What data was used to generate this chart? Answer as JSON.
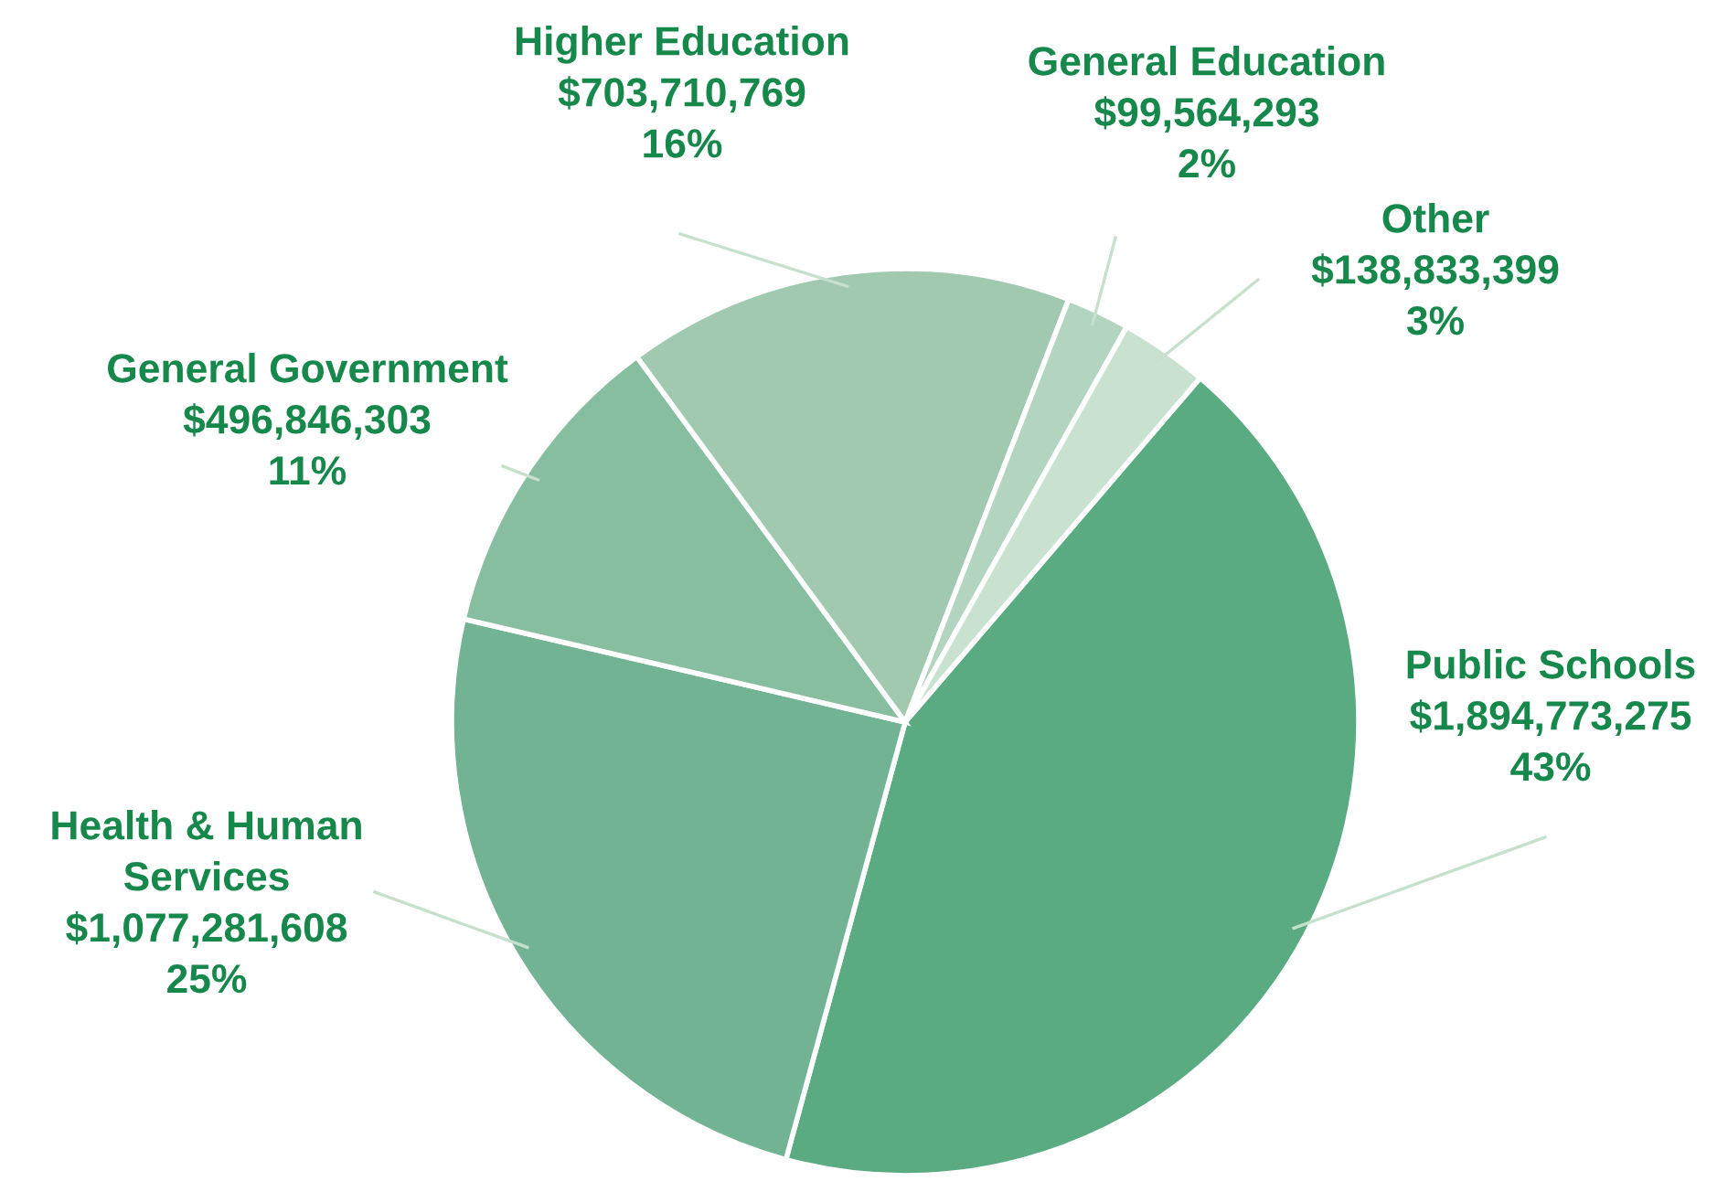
{
  "chart_data": {
    "type": "pie",
    "categories": [
      "Public Schools",
      "Health & Human Services",
      "General Government",
      "Higher Education",
      "General Education",
      "Other"
    ],
    "values": [
      1894773275,
      1077281608,
      496846303,
      703710769,
      99564293,
      138833399
    ],
    "value_labels": [
      "$1,894,773,275\n43%",
      "$1,077,281,608\n25%",
      "$496,846,303\n11%",
      "$703,710,769\n16%",
      "$99,564,293\n2%",
      "$138,833,399\n3%"
    ],
    "colors": [
      "#5aaa82",
      "#72b394",
      "#88bea0",
      "#a0c9b0",
      "#b3d5bf",
      "#c8e2cf"
    ],
    "legend": false
  }
}
